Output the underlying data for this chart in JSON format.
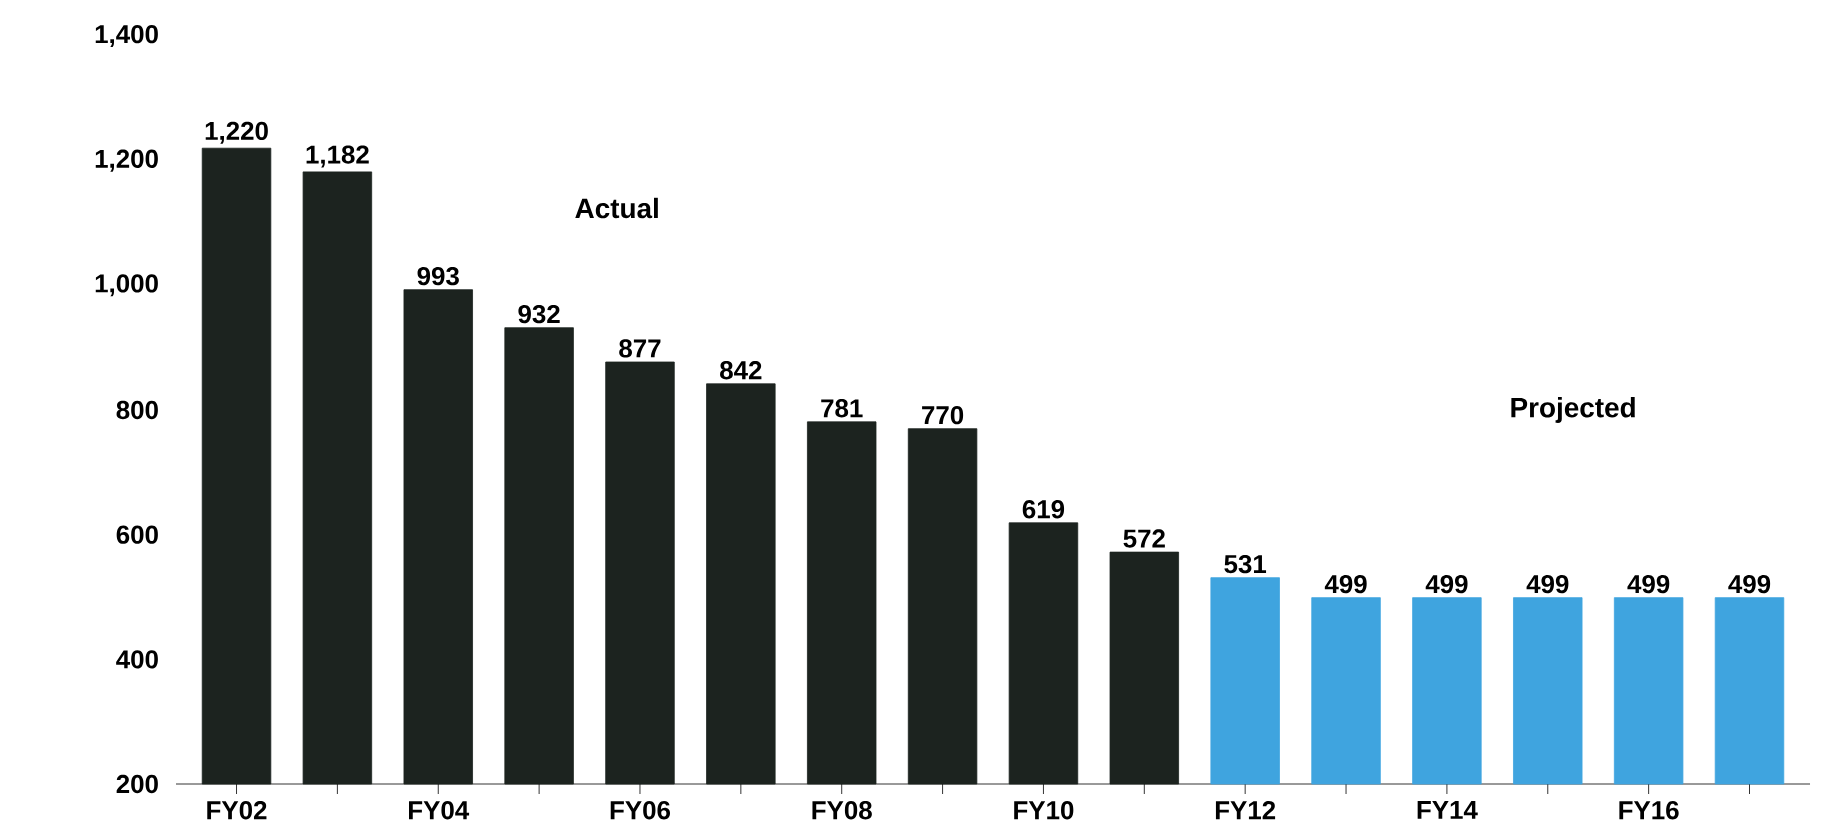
{
  "chart_data": {
    "type": "bar",
    "categories": [
      "FY02",
      null,
      "FY04",
      null,
      "FY06",
      null,
      "FY08",
      null,
      "FY10",
      null,
      "FY12",
      null,
      "FY14",
      null,
      "FY16",
      null
    ],
    "values": [
      1220,
      1182,
      993,
      932,
      877,
      842,
      781,
      770,
      619,
      572,
      531,
      499,
      499,
      499,
      499,
      499
    ],
    "value_labels": [
      "1,220",
      "1,182",
      "993",
      "932",
      "877",
      "842",
      "781",
      "770",
      "619",
      "572",
      "531",
      "499",
      "499",
      "499",
      "499",
      "499"
    ],
    "colors": [
      "#1c231f",
      "#1c231f",
      "#1c231f",
      "#1c231f",
      "#1c231f",
      "#1c231f",
      "#1c231f",
      "#1c231f",
      "#1c231f",
      "#1c231f",
      "#3fa4df",
      "#3fa4df",
      "#3fa4df",
      "#3fa4df",
      "#3fa4df",
      "#3fa4df"
    ],
    "ylim": [
      200,
      1400
    ],
    "yticks": [
      200,
      400,
      600,
      800,
      {
        "value": 1000,
        "label": "1,000"
      },
      {
        "value": 1200,
        "label": "1,200"
      },
      {
        "value": 1400,
        "label": "1,400"
      }
    ],
    "annotations": [
      "Actual",
      "Projected"
    ]
  }
}
